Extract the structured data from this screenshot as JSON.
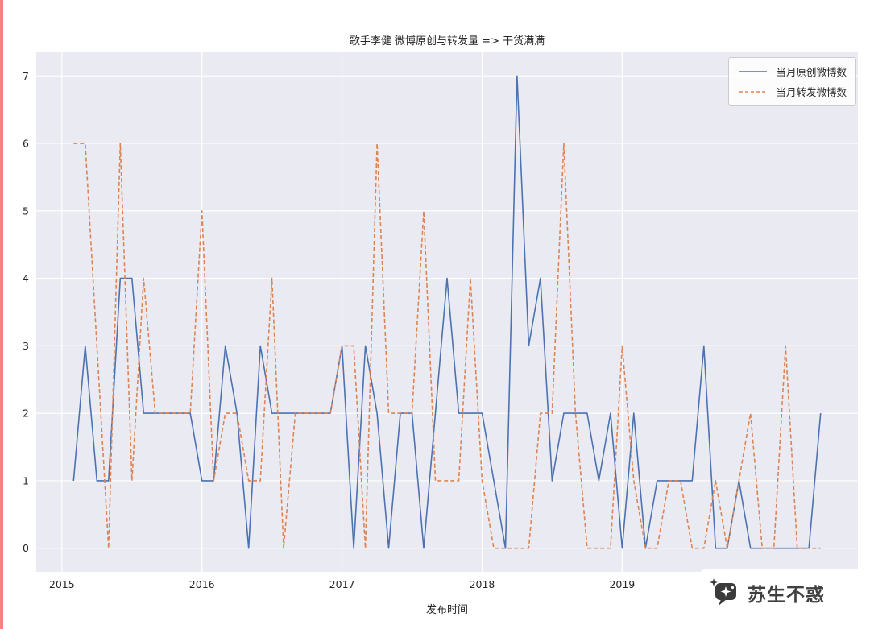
{
  "page": {
    "watermark_text": "苏生不惑"
  },
  "chart_data": {
    "type": "line",
    "title": "歌手李健 微博原创与转发量 => 干货满满",
    "xlabel": "发布时间",
    "ylabel": "",
    "grid": true,
    "legend_position": "upper right",
    "x_ticks": [
      2015,
      2016,
      2017,
      2018,
      2019
    ],
    "y_ticks": [
      0,
      1,
      2,
      3,
      4,
      5,
      6,
      7
    ],
    "xlim": [
      2014.817,
      2020.683
    ],
    "ylim": [
      -0.35,
      7.35
    ],
    "colors": {
      "plot_background": "#eaeaf2",
      "grid": "#ffffff",
      "tick_text": "#262626",
      "blue_series": "#4c72b0",
      "orange_series": "#dd8452"
    },
    "months": [
      "2015-02",
      "2015-03",
      "2015-04",
      "2015-05",
      "2015-06",
      "2015-07",
      "2015-08",
      "2015-09",
      "2015-10",
      "2015-11",
      "2015-12",
      "2016-01",
      "2016-02",
      "2016-03",
      "2016-04",
      "2016-05",
      "2016-06",
      "2016-07",
      "2016-08",
      "2016-09",
      "2016-10",
      "2016-11",
      "2016-12",
      "2017-01",
      "2017-02",
      "2017-03",
      "2017-04",
      "2017-05",
      "2017-06",
      "2017-07",
      "2017-08",
      "2017-09",
      "2017-10",
      "2017-11",
      "2017-12",
      "2018-01",
      "2018-02",
      "2018-03",
      "2018-04",
      "2018-05",
      "2018-06",
      "2018-07",
      "2018-08",
      "2018-09",
      "2018-10",
      "2018-11",
      "2018-12",
      "2019-01",
      "2019-02",
      "2019-03",
      "2019-04",
      "2019-05",
      "2019-06",
      "2019-07",
      "2019-08",
      "2019-09",
      "2019-10",
      "2019-11",
      "2019-12",
      "2020-01",
      "2020-02",
      "2020-03",
      "2020-04",
      "2020-05",
      "2020-06"
    ],
    "series": [
      {
        "name": "当月原创微博数",
        "color": "#4c72b0",
        "style": "solid",
        "values": [
          1,
          3,
          1,
          1,
          4,
          4,
          2,
          2,
          2,
          2,
          2,
          1,
          1,
          3,
          2,
          0,
          3,
          2,
          2,
          2,
          2,
          2,
          2,
          3,
          0,
          3,
          2,
          0,
          2,
          2,
          0,
          2,
          4,
          2,
          2,
          2,
          1,
          0,
          7,
          3,
          4,
          1,
          2,
          2,
          2,
          1,
          2,
          0,
          2,
          0,
          1,
          1,
          1,
          1,
          3,
          0,
          0,
          1,
          0,
          0,
          0,
          0,
          0,
          0,
          2
        ]
      },
      {
        "name": "当月转发微博数",
        "color": "#dd8452",
        "style": "dashed",
        "values": [
          6,
          6,
          3,
          0,
          6,
          1,
          4,
          2,
          2,
          2,
          2,
          5,
          1,
          2,
          2,
          1,
          1,
          4,
          0,
          2,
          2,
          2,
          2,
          3,
          3,
          0,
          6,
          2,
          2,
          2,
          5,
          1,
          1,
          1,
          4,
          1,
          0,
          0,
          0,
          0,
          2,
          2,
          6,
          2,
          0,
          0,
          0,
          3,
          1,
          0,
          0,
          1,
          1,
          0,
          0,
          1,
          0,
          1,
          2,
          0,
          0,
          3,
          0,
          0,
          0
        ]
      }
    ]
  }
}
